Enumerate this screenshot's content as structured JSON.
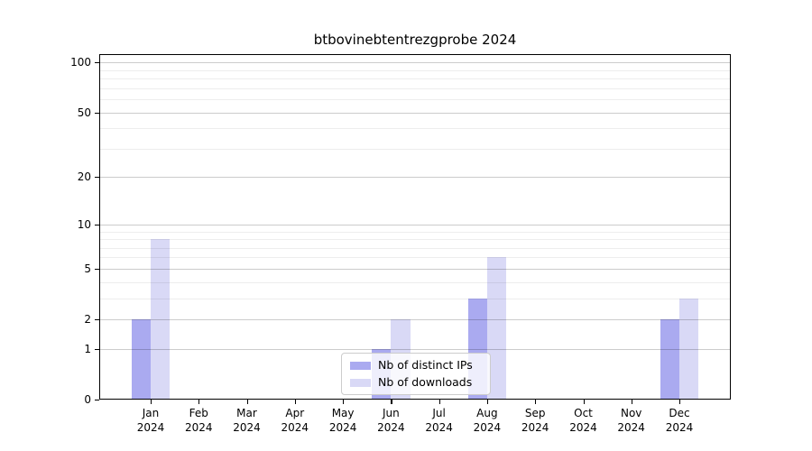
{
  "chart_data": {
    "type": "bar",
    "title": "btbovinebtentrezgprobe 2024",
    "categories": [
      "Jan",
      "Feb",
      "Mar",
      "Apr",
      "May",
      "Jun",
      "Jul",
      "Aug",
      "Sep",
      "Oct",
      "Nov",
      "Dec"
    ],
    "category_year": "2024",
    "series": [
      {
        "name": "Nb of distinct IPs",
        "color": "#aaaaf0",
        "values": [
          2,
          0,
          0,
          0,
          0,
          1,
          0,
          3,
          0,
          0,
          0,
          2
        ]
      },
      {
        "name": "Nb of downloads",
        "color": "#d9d9f6",
        "values": [
          8,
          0,
          0,
          0,
          0,
          2,
          0,
          6,
          0,
          0,
          0,
          3
        ]
      }
    ],
    "xlabel": "",
    "ylabel": "",
    "yscale": "log1p",
    "ylim": [
      0,
      112
    ],
    "yticks": [
      0,
      1,
      2,
      5,
      10,
      20,
      50,
      100
    ],
    "minor_yticks": [
      3,
      4,
      6,
      7,
      8,
      9,
      30,
      40,
      60,
      70,
      80,
      90
    ],
    "grid": true,
    "legend_position": "lower center"
  }
}
